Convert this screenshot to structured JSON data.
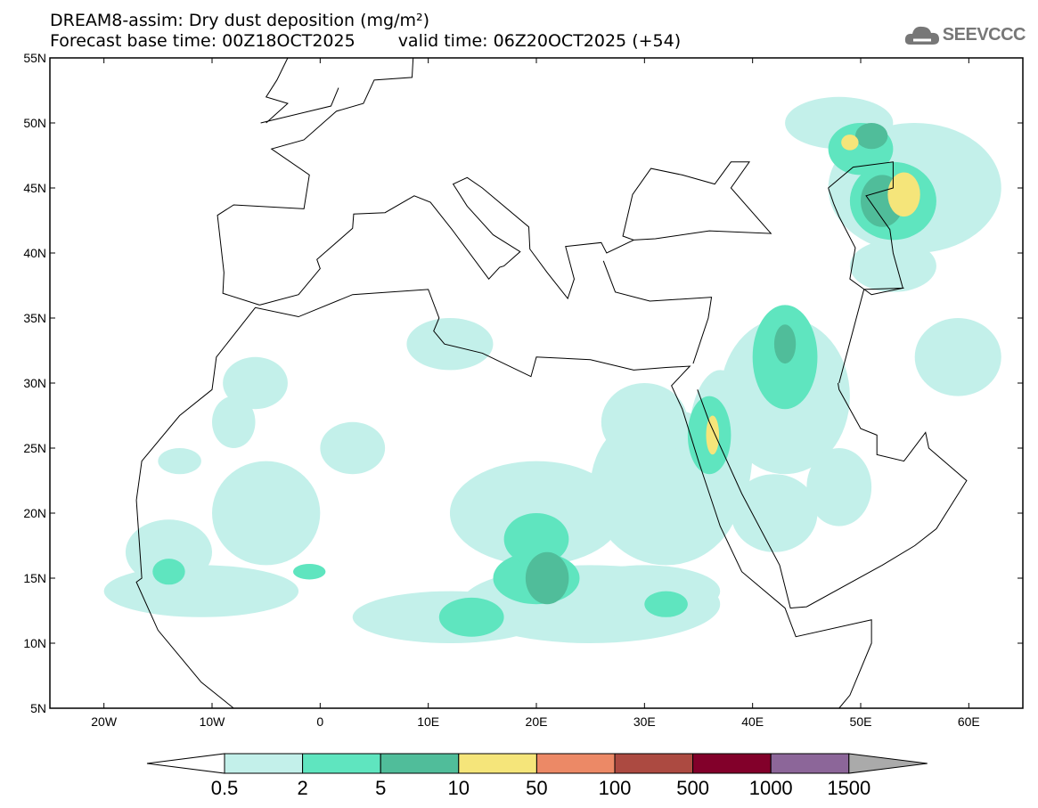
{
  "header": {
    "title": "DREAM8-assim: Dry dust deposition (mg/m²)",
    "base_time": "Forecast base time: 00Z18OCT2025",
    "valid_time": "valid time: 06Z20OCT2025 (+54)",
    "logo_text": "SEEVCCC"
  },
  "map": {
    "lon_range": [
      -25,
      65
    ],
    "lat_range": [
      5,
      55
    ],
    "lat_labels": [
      "55N",
      "50N",
      "45N",
      "40N",
      "35N",
      "30N",
      "25N",
      "20N",
      "15N",
      "10N",
      "5N"
    ],
    "lat_values": [
      55,
      50,
      45,
      40,
      35,
      30,
      25,
      20,
      15,
      10,
      5
    ],
    "lon_labels": [
      "20W",
      "10W",
      "0",
      "10E",
      "20E",
      "30E",
      "40E",
      "50E",
      "60E"
    ],
    "lon_values": [
      -20,
      -10,
      0,
      10,
      20,
      30,
      40,
      50,
      60
    ]
  },
  "legend": {
    "labels": [
      "0.5",
      "2",
      "5",
      "10",
      "50",
      "100",
      "500",
      "1000",
      "1500"
    ],
    "colors": [
      "#c3f0ea",
      "#5fe5bf",
      "#50bd9a",
      "#f5e57a",
      "#ec8966",
      "#ac4a41",
      "#82002a",
      "#8c6699"
    ],
    "below_color": "#ffffff",
    "above_color": "#aaaaaa"
  }
}
